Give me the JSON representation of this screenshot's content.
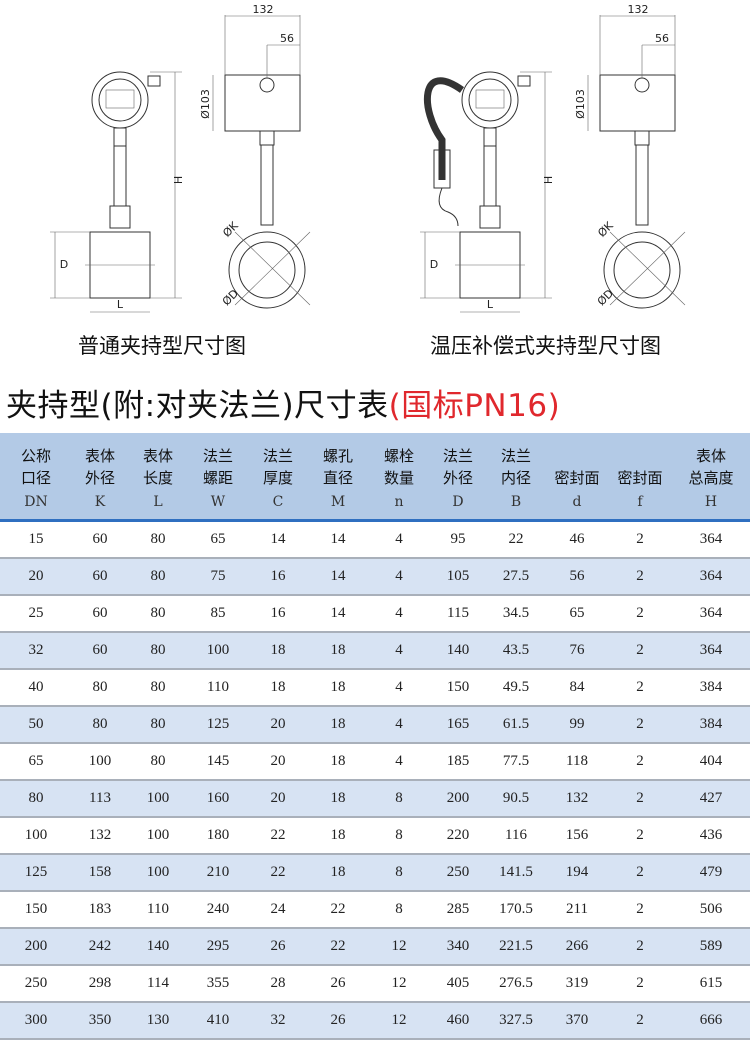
{
  "drawings": [
    {
      "caption": "普通夹持型尺寸图",
      "dims": {
        "width": "132",
        "offset": "56",
        "head_dia": "Ø103",
        "height": "H",
        "dia_d": "D",
        "length": "L",
        "dia_k": "ØK",
        "dia_flange": "ØD"
      },
      "compensated": false
    },
    {
      "caption": "温压补偿式夹持型尺寸图",
      "dims": {
        "width": "132",
        "offset": "56",
        "head_dia": "Ø103",
        "height": "H",
        "dia_d": "D",
        "length": "L",
        "dia_k": "ØK",
        "dia_flange": "ØD"
      },
      "compensated": true
    }
  ],
  "title": {
    "main": "夹持型(附:对夹法兰)尺寸表",
    "standard": "(国标PN16)"
  },
  "table": {
    "headers": [
      {
        "line1": "公称",
        "line2": "口径",
        "code": "DN"
      },
      {
        "line1": "表体",
        "line2": "外径",
        "code": "K"
      },
      {
        "line1": "表体",
        "line2": "长度",
        "code": "L"
      },
      {
        "line1": "法兰",
        "line2": "螺距",
        "code": "W"
      },
      {
        "line1": "法兰",
        "line2": "厚度",
        "code": "C"
      },
      {
        "line1": "螺孔",
        "line2": "直径",
        "code": "M"
      },
      {
        "line1": "螺栓",
        "line2": "数量",
        "code": "n"
      },
      {
        "line1": "法兰",
        "line2": "外径",
        "code": "D"
      },
      {
        "line1": "法兰",
        "line2": "内径",
        "code": "B"
      },
      {
        "line1": "",
        "line2": "密封面",
        "code": "d"
      },
      {
        "line1": "",
        "line2": "密封面",
        "code": "f"
      },
      {
        "line1": "表体",
        "line2": "总高度",
        "code": "H"
      }
    ],
    "rows": [
      [
        "15",
        "60",
        "80",
        "65",
        "14",
        "14",
        "4",
        "95",
        "22",
        "46",
        "2",
        "364"
      ],
      [
        "20",
        "60",
        "80",
        "75",
        "16",
        "14",
        "4",
        "105",
        "27.5",
        "56",
        "2",
        "364"
      ],
      [
        "25",
        "60",
        "80",
        "85",
        "16",
        "14",
        "4",
        "115",
        "34.5",
        "65",
        "2",
        "364"
      ],
      [
        "32",
        "60",
        "80",
        "100",
        "18",
        "18",
        "4",
        "140",
        "43.5",
        "76",
        "2",
        "364"
      ],
      [
        "40",
        "80",
        "80",
        "110",
        "18",
        "18",
        "4",
        "150",
        "49.5",
        "84",
        "2",
        "384"
      ],
      [
        "50",
        "80",
        "80",
        "125",
        "20",
        "18",
        "4",
        "165",
        "61.5",
        "99",
        "2",
        "384"
      ],
      [
        "65",
        "100",
        "80",
        "145",
        "20",
        "18",
        "4",
        "185",
        "77.5",
        "118",
        "2",
        "404"
      ],
      [
        "80",
        "113",
        "100",
        "160",
        "20",
        "18",
        "8",
        "200",
        "90.5",
        "132",
        "2",
        "427"
      ],
      [
        "100",
        "132",
        "100",
        "180",
        "22",
        "18",
        "8",
        "220",
        "116",
        "156",
        "2",
        "436"
      ],
      [
        "125",
        "158",
        "100",
        "210",
        "22",
        "18",
        "8",
        "250",
        "141.5",
        "194",
        "2",
        "479"
      ],
      [
        "150",
        "183",
        "110",
        "240",
        "24",
        "22",
        "8",
        "285",
        "170.5",
        "211",
        "2",
        "506"
      ],
      [
        "200",
        "242",
        "140",
        "295",
        "26",
        "22",
        "12",
        "340",
        "221.5",
        "266",
        "2",
        "589"
      ],
      [
        "250",
        "298",
        "114",
        "355",
        "28",
        "26",
        "12",
        "405",
        "276.5",
        "319",
        "2",
        "615"
      ],
      [
        "300",
        "350",
        "130",
        "410",
        "32",
        "26",
        "12",
        "460",
        "327.5",
        "370",
        "2",
        "666"
      ]
    ]
  },
  "colors": {
    "header_bg": "#b3cae6",
    "row_alt": "#d7e3f3",
    "accent_line": "#2f6fc0",
    "standard_red": "#e0282d"
  }
}
